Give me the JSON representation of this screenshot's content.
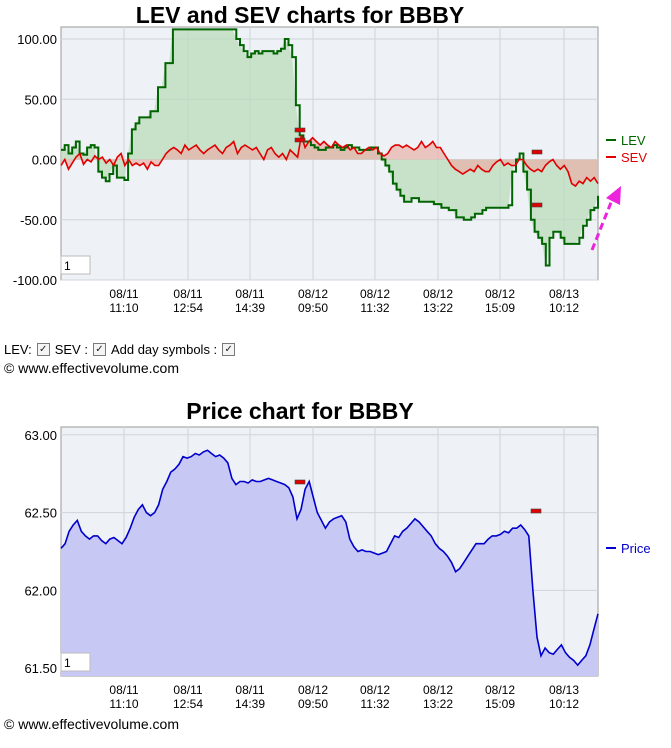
{
  "chart_data": [
    {
      "type": "line",
      "title": "LEV and SEV charts for BBBY",
      "ylim": [
        -100,
        110
      ],
      "yticks": [
        "100.00",
        "50.00",
        "0.00",
        "-50.00",
        "-100.00"
      ],
      "x_tick_dates": [
        "08/11",
        "08/11",
        "08/11",
        "08/12",
        "08/12",
        "08/12",
        "08/12",
        "08/13"
      ],
      "x_tick_times": [
        "11:10",
        "12:54",
        "14:39",
        "09:50",
        "11:32",
        "13:22",
        "15:09",
        "10:12"
      ],
      "zoom_box": "1",
      "series": [
        {
          "name": "LEV",
          "color": "#006400",
          "values": [
            8,
            12,
            5,
            10,
            15,
            5,
            4,
            10,
            12,
            10,
            -10,
            -15,
            -18,
            -12,
            -5,
            -15,
            -15,
            -17,
            5,
            25,
            30,
            35,
            35,
            35,
            40,
            40,
            60,
            60,
            80,
            80,
            108,
            108,
            108,
            108,
            108,
            108,
            108,
            108,
            108,
            108,
            108,
            108,
            108,
            108,
            108,
            108,
            108,
            100,
            95,
            90,
            85,
            88,
            90,
            88,
            90,
            90,
            90,
            88,
            90,
            92,
            100,
            95,
            85,
            45,
            20,
            15,
            15,
            12,
            10,
            8,
            8,
            10,
            10,
            12,
            10,
            8,
            10,
            12,
            10,
            10,
            8,
            8,
            8,
            10,
            10,
            5,
            0,
            -5,
            -10,
            -20,
            -25,
            -30,
            -35,
            -35,
            -32,
            -32,
            -35,
            -35,
            -35,
            -35,
            -37,
            -37,
            -40,
            -40,
            -42,
            -42,
            -48,
            -48,
            -50,
            -50,
            -48,
            -45,
            -45,
            -42,
            -40,
            -40,
            -40,
            -40,
            -40,
            -40,
            -38,
            -10,
            0,
            5,
            -10,
            -25,
            -50,
            -60,
            -65,
            -70,
            -88,
            -65,
            -60,
            -60,
            -65,
            -70,
            -70,
            -70,
            -70,
            -65,
            -55,
            -50,
            -42,
            -40,
            -30
          ]
        },
        {
          "name": "SEV",
          "color": "#e00000",
          "values": [
            -5,
            0,
            -8,
            -3,
            2,
            5,
            -4,
            0,
            -2,
            3,
            0,
            2,
            -3,
            0,
            -5,
            2,
            5,
            -5,
            0,
            -5,
            -3,
            -5,
            -3,
            -8,
            -2,
            -5,
            -5,
            0,
            5,
            8,
            10,
            8,
            5,
            12,
            8,
            10,
            12,
            8,
            5,
            8,
            10,
            12,
            8,
            5,
            10,
            12,
            15,
            5,
            10,
            12,
            10,
            8,
            10,
            5,
            0,
            8,
            10,
            5,
            2,
            5,
            0,
            8,
            5,
            2,
            20,
            10,
            15,
            18,
            15,
            12,
            15,
            12,
            10,
            15,
            12,
            10,
            12,
            8,
            10,
            5,
            5,
            8,
            10,
            8,
            10,
            5,
            3,
            5,
            10,
            12,
            12,
            10,
            12,
            10,
            8,
            10,
            15,
            10,
            12,
            15,
            10,
            10,
            5,
            0,
            -5,
            -8,
            -10,
            -12,
            -10,
            -8,
            -10,
            -5,
            -8,
            -10,
            -10,
            -5,
            -2,
            0,
            -5,
            -3,
            -5,
            -5,
            0,
            0,
            -5,
            -8,
            -10,
            -8,
            -10,
            -5,
            -2,
            0,
            -5,
            -8,
            -5,
            -10,
            -20,
            -22,
            -18,
            -20,
            -15,
            -18,
            -15,
            -20
          ]
        }
      ]
    },
    {
      "type": "area",
      "title": "Price chart for BBBY",
      "ylim": [
        61.45,
        63.05
      ],
      "yticks": [
        "63.00",
        "62.50",
        "62.00",
        "61.50"
      ],
      "x_tick_dates": [
        "08/11",
        "08/11",
        "08/11",
        "08/12",
        "08/12",
        "08/12",
        "08/12",
        "08/13"
      ],
      "x_tick_times": [
        "11:10",
        "12:54",
        "14:39",
        "09:50",
        "11:32",
        "13:22",
        "15:09",
        "10:12"
      ],
      "zoom_box": "1",
      "series": [
        {
          "name": "Price",
          "color": "#0000cc",
          "values": [
            62.27,
            62.3,
            62.38,
            62.42,
            62.45,
            62.38,
            62.35,
            62.33,
            62.35,
            62.35,
            62.32,
            62.3,
            62.33,
            62.34,
            62.32,
            62.3,
            62.34,
            62.4,
            62.47,
            62.52,
            62.55,
            62.5,
            62.48,
            62.5,
            62.55,
            62.65,
            62.7,
            62.76,
            62.78,
            62.81,
            62.86,
            62.85,
            62.86,
            62.88,
            62.87,
            62.89,
            62.9,
            62.88,
            62.86,
            62.87,
            62.85,
            62.82,
            62.72,
            62.68,
            62.7,
            62.7,
            62.69,
            62.71,
            62.7,
            62.7,
            62.71,
            62.72,
            62.71,
            62.7,
            62.69,
            62.68,
            62.66,
            62.6,
            62.46,
            62.52,
            62.65,
            62.7,
            62.6,
            62.5,
            62.45,
            62.4,
            62.44,
            62.46,
            62.47,
            62.48,
            62.44,
            62.33,
            62.28,
            62.25,
            62.26,
            62.25,
            62.25,
            62.24,
            62.23,
            62.24,
            62.25,
            62.3,
            62.35,
            62.34,
            62.38,
            62.4,
            62.43,
            62.46,
            62.44,
            62.41,
            62.38,
            62.35,
            62.3,
            62.27,
            62.25,
            62.22,
            62.18,
            62.12,
            62.14,
            62.18,
            62.22,
            62.26,
            62.3,
            62.3,
            62.3,
            62.33,
            62.35,
            62.35,
            62.36,
            62.38,
            62.37,
            62.4,
            62.4,
            62.42,
            62.39,
            62.35,
            62.0,
            61.7,
            61.58,
            61.63,
            61.6,
            61.59,
            61.62,
            61.65,
            61.6,
            61.57,
            61.55,
            61.52,
            61.55,
            61.58,
            61.65,
            61.75,
            61.85
          ]
        }
      ]
    }
  ],
  "controls": {
    "lev_label": "LEV:",
    "sev_label": "SEV :",
    "day_label": "Add day symbols :"
  },
  "credit": "© www.effectivevolume.com"
}
